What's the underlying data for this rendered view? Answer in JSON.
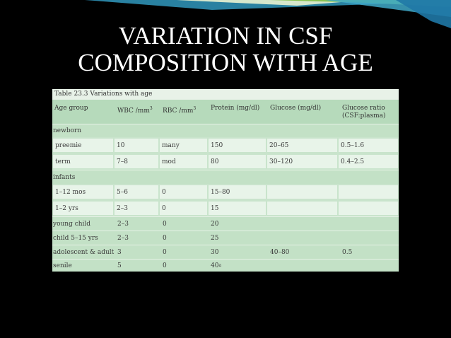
{
  "slide": {
    "title_line1": "VARIATION IN CSF",
    "title_line2": "COMPOSITION WITH AGE"
  },
  "table": {
    "caption": "Table 23.3  Variations with age",
    "headers": {
      "age_group": "Age group",
      "wbc": "WBC /mm",
      "rbc": "RBC /mm",
      "protein": "Protein (mg/dl)",
      "glucose": "Glucose (mg/dl)",
      "ratio_line1": "Glucose ratio",
      "ratio_line2": "(CSF:plasma)"
    },
    "unit_exponent": "3",
    "sections": {
      "newborn": "newborn",
      "infants": "infants"
    },
    "rows": {
      "preemie": [
        "preemie",
        "10",
        "many",
        "150",
        "20–65",
        "0.5–1.6"
      ],
      "term": [
        "term",
        "7–8",
        "mod",
        "80",
        "30–120",
        "0.4–2.5"
      ],
      "infant_1_12": [
        "1–12 mos",
        "5–6",
        "0",
        "15–80",
        "",
        ""
      ],
      "infant_1_2": [
        "1–2 yrs",
        "2–3",
        "0",
        "15",
        "",
        ""
      ],
      "young_child": [
        "young child",
        "2–3",
        "0",
        "20",
        "",
        ""
      ],
      "child": [
        "child 5–15 yrs",
        "2–3",
        "0",
        "25",
        "",
        ""
      ],
      "adolescent": [
        "adolescent & adult",
        "3",
        "0",
        "30",
        "40–80",
        "0.5"
      ],
      "senile": [
        "senile",
        "5",
        "0",
        "40",
        "",
        ""
      ]
    },
    "footnote_mark": "a"
  }
}
